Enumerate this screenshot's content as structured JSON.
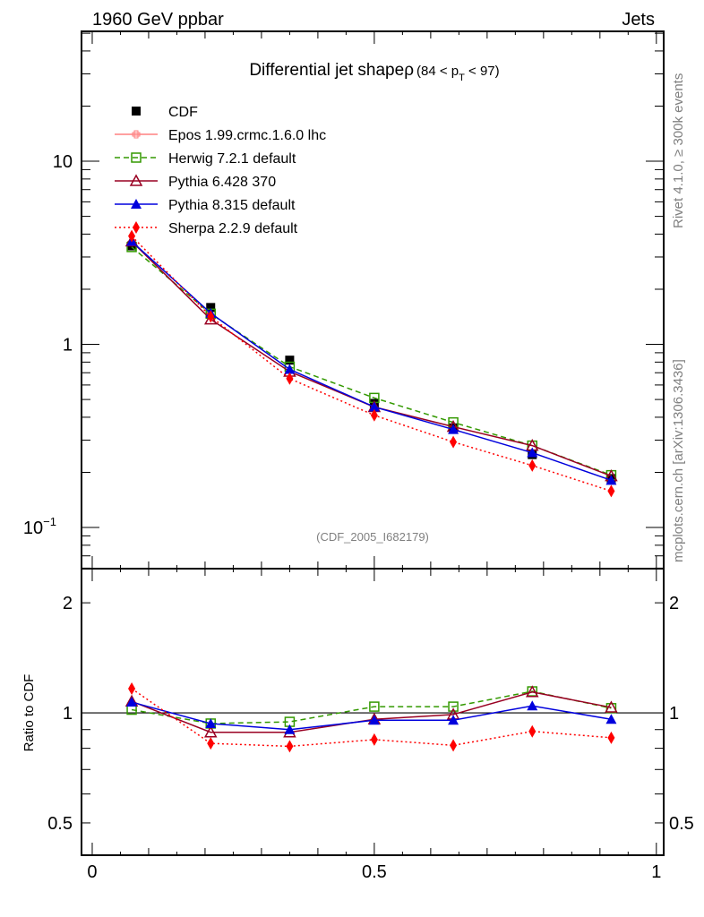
{
  "header": {
    "left": "1960 GeV ppbar",
    "right": "Jets"
  },
  "side_labels": {
    "top": "Rivet 4.1.0, ≥ 300k events",
    "bottom": "mcplots.cern.ch [arXiv:1306.3436]"
  },
  "watermark": "(CDF_2005_I682179)",
  "chart_data": [
    {
      "panel": "main",
      "type": "line",
      "title": "Differential jet shapeρ",
      "title_suffix": "(84 < p",
      "title_sub": "T",
      "title_end": " < 97)",
      "xlabel": "",
      "ylabel": "",
      "yscale": "log",
      "xlim": [
        -0.019,
        1.013
      ],
      "ylim": [
        0.0596,
        51.2
      ],
      "yticks": [
        {
          "value": 10,
          "label": "10"
        },
        {
          "value": 1,
          "label": "1"
        },
        {
          "value": 0.1,
          "label": "10",
          "exp": "−1"
        }
      ],
      "legend_position": "top-left",
      "x": [
        0.07,
        0.21,
        0.35,
        0.5,
        0.64,
        0.78,
        0.92
      ],
      "series": [
        {
          "name": "CDF",
          "color": "#000000",
          "marker": "square-filled",
          "line": "none",
          "values": [
            3.45,
            1.59,
            0.82,
            0.476,
            0.35,
            0.25,
            0.185
          ]
        },
        {
          "name": "Epos 1.99.crmc.1.6.0 lhc",
          "color": "#ff8080",
          "marker": "cross-open",
          "line": "solid",
          "values": []
        },
        {
          "name": "Herwig 7.2.1 default",
          "color": "#339900",
          "marker": "square-open",
          "line": "dashed",
          "values": [
            3.4,
            1.47,
            0.755,
            0.51,
            0.375,
            0.28,
            0.193
          ]
        },
        {
          "name": "Pythia 6.428 370",
          "color": "#990022",
          "marker": "triangle-open",
          "line": "solid",
          "values": [
            3.65,
            1.37,
            0.71,
            0.455,
            0.355,
            0.28,
            0.191
          ]
        },
        {
          "name": "Pythia 8.315 default",
          "color": "#0000dd",
          "marker": "triangle-filled",
          "line": "solid",
          "values": [
            3.65,
            1.48,
            0.73,
            0.455,
            0.343,
            0.256,
            0.181
          ]
        },
        {
          "name": "Sherpa 2.2.9 default",
          "color": "#ff0000",
          "marker": "diamond-filled",
          "line": "dotted",
          "values": [
            3.9,
            1.42,
            0.65,
            0.41,
            0.293,
            0.218,
            0.158
          ]
        }
      ]
    },
    {
      "panel": "ratio",
      "type": "line",
      "title": "",
      "xlabel": "",
      "ylabel": "Ratio to CDF",
      "yscale": "log",
      "xlim": [
        -0.019,
        1.013
      ],
      "ylim": [
        0.408,
        2.48
      ],
      "yticks": [
        {
          "value": 2,
          "label": "2"
        },
        {
          "value": 1,
          "label": "1"
        },
        {
          "value": 0.5,
          "label": "0.5"
        }
      ],
      "xticks": [
        {
          "value": 0,
          "label": "0"
        },
        {
          "value": 0.5,
          "label": "0.5"
        },
        {
          "value": 1,
          "label": "1"
        }
      ],
      "reference_line": 1,
      "x": [
        0.07,
        0.21,
        0.35,
        0.5,
        0.64,
        0.78,
        0.92
      ],
      "series": [
        {
          "name": "Herwig 7.2.1 default",
          "color": "#339900",
          "marker": "square-open",
          "line": "dashed",
          "values": [
            1.02,
            0.935,
            0.945,
            1.04,
            1.04,
            1.145,
            1.03
          ]
        },
        {
          "name": "Pythia 6.428 370",
          "color": "#990022",
          "marker": "triangle-open",
          "line": "solid",
          "values": [
            1.075,
            0.885,
            0.885,
            0.96,
            0.99,
            1.14,
            1.035
          ]
        },
        {
          "name": "Pythia 8.315 default",
          "color": "#0000dd",
          "marker": "triangle-filled",
          "line": "solid",
          "values": [
            1.07,
            0.935,
            0.9,
            0.955,
            0.955,
            1.045,
            0.96
          ]
        },
        {
          "name": "Sherpa 2.2.9 default",
          "color": "#ff0000",
          "marker": "diamond-filled",
          "line": "dotted",
          "values": [
            1.165,
            0.825,
            0.81,
            0.845,
            0.815,
            0.89,
            0.855
          ]
        }
      ]
    }
  ]
}
